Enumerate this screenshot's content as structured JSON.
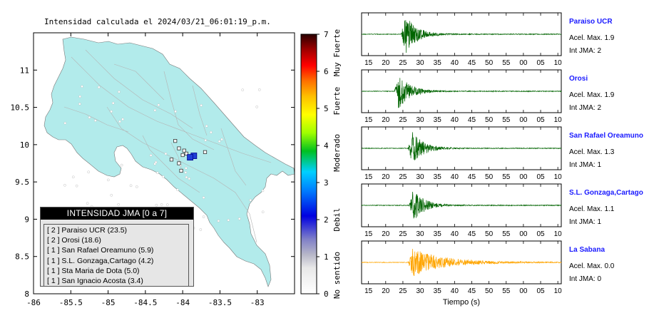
{
  "title": "Intensidad calculada el 2024/03/21_06:01:19_p.m.",
  "chart_data": [
    {
      "type": "heatmap",
      "x": [
        -86,
        -85.5,
        -85,
        -84.5,
        -84,
        -83.5,
        -83
      ],
      "y": [
        8,
        8.5,
        9,
        9.5,
        10,
        10.5,
        11
      ],
      "xlim": [
        -86,
        -82.5
      ],
      "ylim": [
        8,
        11.5
      ],
      "points": [
        {
          "x": -83.85,
          "y": 9.85,
          "value": 2,
          "label": "Paraiso UCR"
        },
        {
          "x": -83.9,
          "y": 9.83,
          "value": 2,
          "label": "Orosi"
        }
      ],
      "stations": [
        {
          "x": -84.1,
          "y": 10.05
        },
        {
          "x": -84.05,
          "y": 9.95
        },
        {
          "x": -83.98,
          "y": 9.92
        },
        {
          "x": -83.95,
          "y": 9.88
        },
        {
          "x": -84.0,
          "y": 9.86
        },
        {
          "x": -84.15,
          "y": 9.8
        },
        {
          "x": -84.05,
          "y": 9.75
        },
        {
          "x": -84.02,
          "y": 9.65
        },
        {
          "x": -83.7,
          "y": 9.9
        }
      ],
      "colorbar": {
        "ticks": [
          0,
          1,
          2,
          3,
          4,
          5,
          6,
          7
        ],
        "labels": [
          "No sentido",
          "Debil",
          "Moderado",
          "Fuerte",
          "Muy Fuerte"
        ]
      },
      "legend": {
        "title": "INTENSIDAD JMA [0 a 7]",
        "items": [
          "[ 2 ] Paraiso UCR (23.5)",
          "[ 2 ] Orosi (18.6)",
          "[ 1 ] San Rafael Oreamuno (5.9)",
          "[ 1 ] S.L. Gonzaga,Cartago (4.2)",
          "[ 1 ] Sta Maria de Dota (5.0)",
          "[ 1 ] San Ignacio Acosta (3.4)"
        ]
      },
      "colors": {
        "land": "#b2ebeb",
        "station": "#1f3fd6",
        "bar_top": "#2a0000",
        "bar_bottom": "#ffffff"
      }
    },
    {
      "type": "line",
      "xlabel": "Tiempo (s)",
      "x_ticks": [
        "15",
        "20",
        "25",
        "30",
        "35",
        "40",
        "45",
        "50",
        "55",
        "00",
        "05",
        "10"
      ],
      "series": [
        {
          "name": "Paraiso UCR",
          "acel_max": "Acel. Max. 1.9",
          "int_jma": "Int JMA: 2",
          "onset": 24.5,
          "amplitude": 1.0,
          "color": "#006400"
        },
        {
          "name": "Orosi",
          "acel_max": "Acel. Max. 1.9",
          "int_jma": "Int JMA: 2",
          "onset": 22.5,
          "amplitude": 0.9,
          "color": "#006400"
        },
        {
          "name": "San Rafael Oreamuno",
          "acel_max": "Acel. Max. 1.3",
          "int_jma": "Int JMA: 1",
          "onset": 26.5,
          "amplitude": 0.85,
          "color": "#006400"
        },
        {
          "name": "S.L. Gonzaga,Cartago",
          "acel_max": "Acel. Max. 1.1",
          "int_jma": "Int JMA: 1",
          "onset": 26.8,
          "amplitude": 0.85,
          "color": "#006400"
        },
        {
          "name": "La Sabana",
          "acel_max": "Acel. Max. 0.0",
          "int_jma": "Int JMA: 0",
          "onset": 26.5,
          "amplitude": 0.7,
          "color": "#ffa500"
        }
      ]
    }
  ]
}
